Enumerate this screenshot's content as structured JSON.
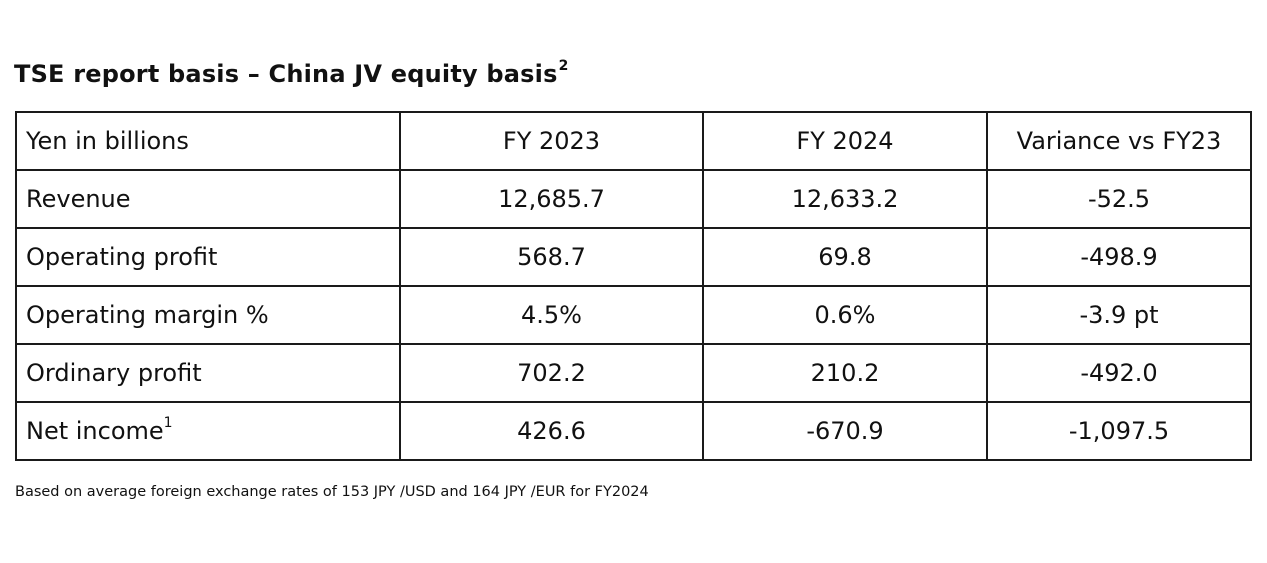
{
  "title": {
    "text": "TSE report basis – China JV equity basis",
    "superscript": "2"
  },
  "table": {
    "headers": [
      "Yen in billions",
      "FY 2023",
      "FY 2024",
      "Variance vs FY23"
    ],
    "rows": [
      {
        "label": "Revenue",
        "sup": "",
        "fy2023": "12,685.7",
        "fy2024": "12,633.2",
        "variance": "-52.5"
      },
      {
        "label": "Operating profit",
        "sup": "",
        "fy2023": "568.7",
        "fy2024": "69.8",
        "variance": "-498.9"
      },
      {
        "label": "Operating margin %",
        "sup": "",
        "fy2023": "4.5%",
        "fy2024": "0.6%",
        "variance": "-3.9 pt"
      },
      {
        "label": "Ordinary profit",
        "sup": "",
        "fy2023": "702.2",
        "fy2024": "210.2",
        "variance": "-492.0"
      },
      {
        "label": "Net income",
        "sup": "1",
        "fy2023": "426.6",
        "fy2024": "-670.9",
        "variance": "-1,097.5"
      }
    ]
  },
  "footnote": "Based on average foreign exchange rates of 153 JPY /USD and 164 JPY /EUR for FY2024"
}
